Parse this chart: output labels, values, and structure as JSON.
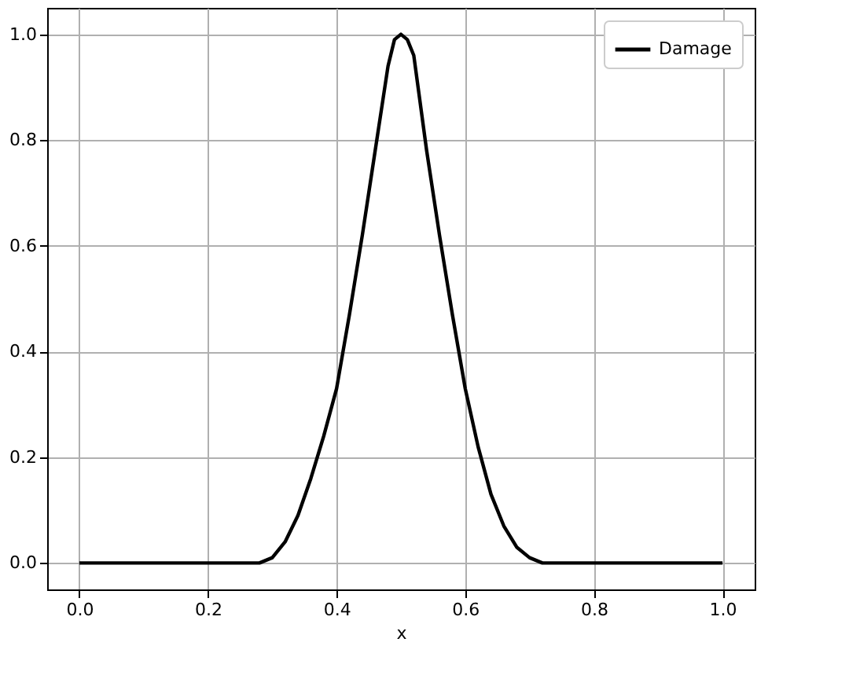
{
  "chart_data": {
    "type": "line",
    "xlabel": "x",
    "legend": "top right",
    "grid": true,
    "marker": "none",
    "line_style": "solid",
    "xlim": [
      -0.05,
      1.05
    ],
    "ylim": [
      -0.05,
      1.05
    ],
    "xticks": [
      {
        "value": 0,
        "label": "0.0"
      },
      {
        "value": 0.2,
        "label": "0.2"
      },
      {
        "value": 0.4,
        "label": "0.4"
      },
      {
        "value": 0.6,
        "label": "0.6"
      },
      {
        "value": 0.8,
        "label": "0.8"
      },
      {
        "value": 1,
        "label": "1.0"
      }
    ],
    "yticks": [
      {
        "value": 0,
        "label": "0.0"
      },
      {
        "value": 0.2,
        "label": "0.2"
      },
      {
        "value": 0.4,
        "label": "0.4"
      },
      {
        "value": 0.6,
        "label": "0.6"
      },
      {
        "value": 0.8,
        "label": "0.8"
      },
      {
        "value": 1,
        "label": "1.0"
      }
    ],
    "x": [
      0,
      0.1,
      0.2,
      0.28,
      0.3,
      0.32,
      0.34,
      0.36,
      0.38,
      0.4,
      0.42,
      0.44,
      0.46,
      0.48,
      0.49,
      0.5,
      0.51,
      0.52,
      0.54,
      0.56,
      0.58,
      0.6,
      0.62,
      0.64,
      0.66,
      0.68,
      0.7,
      0.72,
      0.8,
      0.9,
      1
    ],
    "series": [
      {
        "name": "Damage",
        "color": "#000000",
        "values": [
          0,
          0,
          0,
          0,
          0.01,
          0.04,
          0.09,
          0.16,
          0.24,
          0.33,
          0.47,
          0.62,
          0.78,
          0.94,
          0.99,
          1.0,
          0.99,
          0.96,
          0.78,
          0.62,
          0.47,
          0.33,
          0.22,
          0.13,
          0.07,
          0.03,
          0.01,
          0,
          0,
          0,
          0
        ]
      }
    ]
  }
}
